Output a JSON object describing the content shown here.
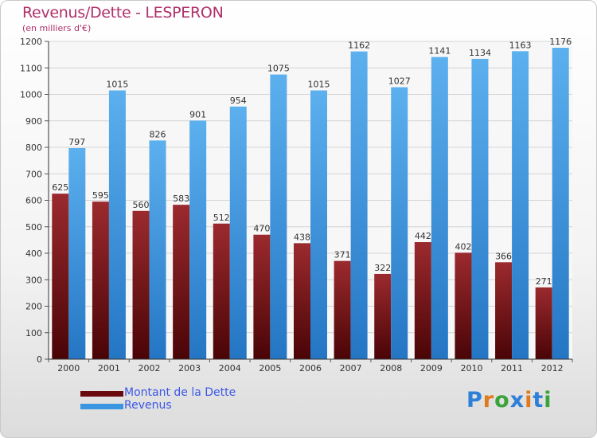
{
  "chart_data": {
    "type": "bar",
    "title": "Revenus/Dette - LESPERON",
    "subtitle": "(en milliers d'€)",
    "categories": [
      "2000",
      "2001",
      "2002",
      "2003",
      "2004",
      "2005",
      "2006",
      "2007",
      "2008",
      "2009",
      "2010",
      "2011",
      "2012"
    ],
    "series": [
      {
        "name": "Montant de la Dette",
        "color": "#7a0f12",
        "values": [
          625,
          595,
          560,
          583,
          512,
          470,
          438,
          371,
          322,
          442,
          402,
          366,
          271
        ]
      },
      {
        "name": "Revenus",
        "color": "#2f8fde",
        "values": [
          797,
          1015,
          826,
          901,
          954,
          1075,
          1015,
          1162,
          1027,
          1141,
          1134,
          1163,
          1176
        ]
      }
    ],
    "ylim": [
      0,
      1200
    ],
    "yticks": [
      0,
      100,
      200,
      300,
      400,
      500,
      600,
      700,
      800,
      900,
      1000,
      1100,
      1200
    ],
    "grid": true,
    "legend_position": "bottom-left"
  },
  "logo": {
    "text": "Proxiti",
    "colors": [
      "#2e7fd8",
      "#e07a1a",
      "#3aa33a",
      "#2e7fd8",
      "#e07a1a",
      "#2e7fd8",
      "#3aa33a"
    ]
  }
}
